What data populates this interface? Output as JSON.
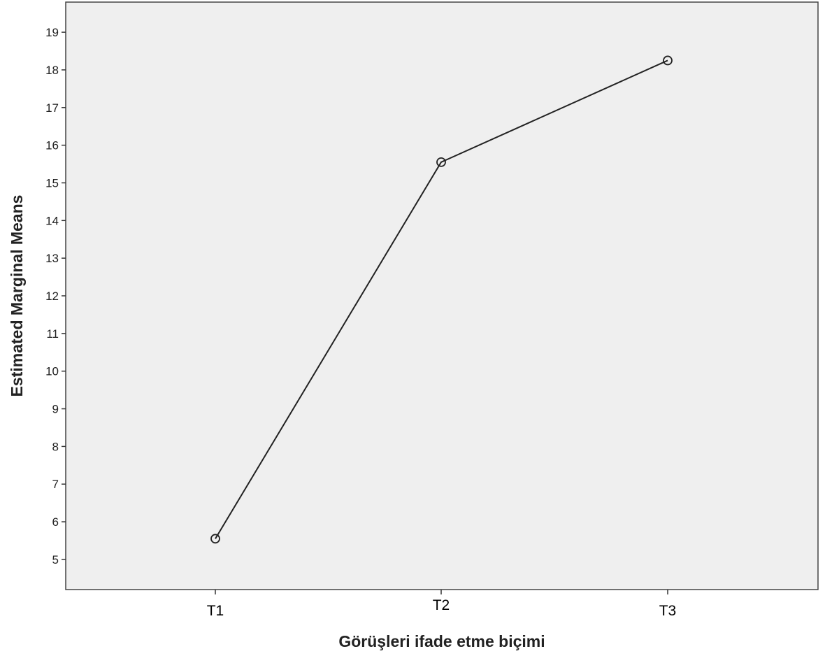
{
  "chart_data": {
    "type": "line",
    "xlabel": "Görüşleri ifade etme biçimi",
    "ylabel": "Estimated Marginal Means",
    "categories": [
      "T1",
      "T2",
      "T3"
    ],
    "series": [
      {
        "values": [
          5.55,
          15.55,
          18.25
        ]
      }
    ],
    "y_ticks": [
      "5",
      "6",
      "7",
      "8",
      "9",
      "10",
      "11",
      "12",
      "13",
      "14",
      "15",
      "16",
      "17",
      "18",
      "19"
    ],
    "ylim": [
      4.2,
      19.8
    ],
    "marker": "open-circle",
    "grid": false,
    "legend": "none",
    "colors": {
      "plot_background": "#efefef",
      "line": "#222222",
      "axis": "#333333"
    }
  }
}
